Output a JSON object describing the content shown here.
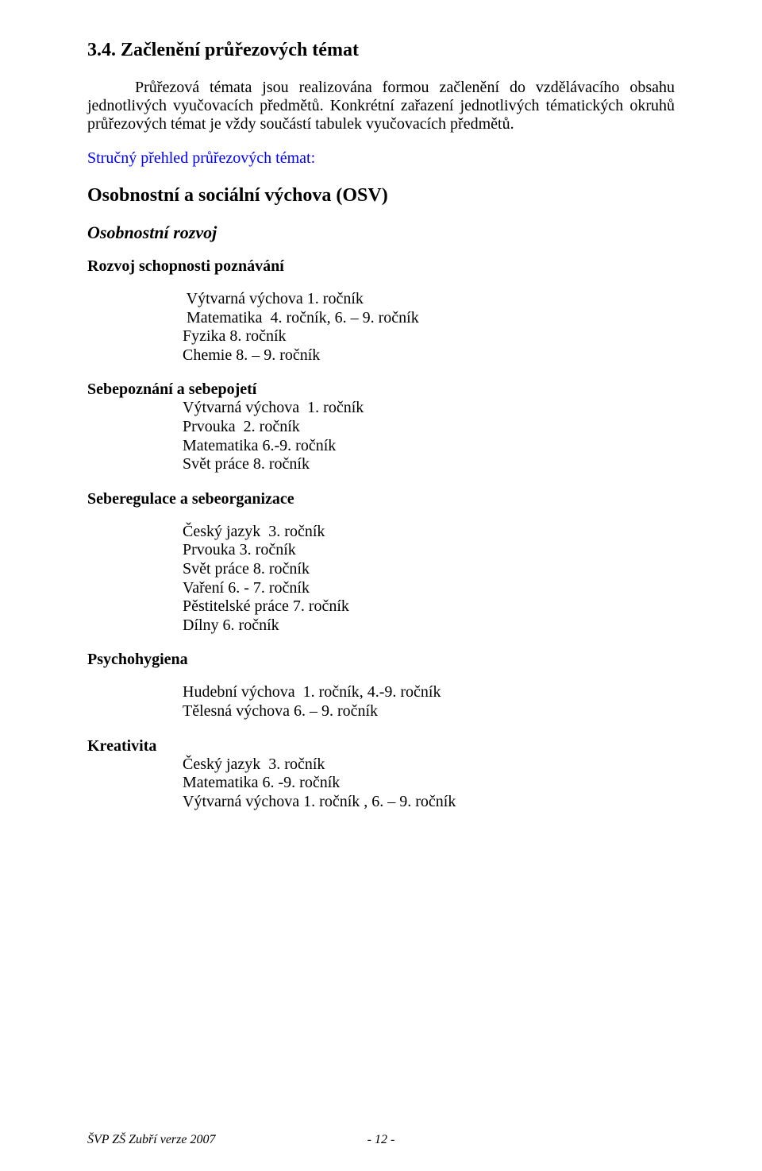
{
  "section_heading": "3.4. Začlenění průřezových témat",
  "intro": "Průřezová témata jsou realizována formou začlenění do vzdělávacího obsahu jednotlivých vyučovacích předmětů. Konkrétní zařazení jednotlivých tématických okruhů průřezových témat je vždy součástí tabulek vyučovacích předmětů.",
  "overview_label": "Stručný přehled průřezových témat:",
  "osv_title": "Osobnostní a sociální výchova (OSV)",
  "subheading": "Osobnostní rozvoj",
  "block1": {
    "title": "Rozvoj schopnosti poznávání",
    "lines": [
      " Výtvarná výchova 1. ročník",
      " Matematika  4. ročník, 6. – 9. ročník",
      "Fyzika 8. ročník",
      "Chemie 8. – 9. ročník"
    ]
  },
  "block2": {
    "title": "Sebepoznání a sebepojetí",
    "lines": [
      "Výtvarná výchova  1. ročník",
      "Prvouka  2. ročník",
      "Matematika 6.-9. ročník",
      "Svět práce 8. ročník"
    ]
  },
  "block3": {
    "title": "Seberegulace a sebeorganizace",
    "lines": [
      "Český jazyk  3. ročník",
      "Prvouka 3. ročník",
      "Svět práce 8. ročník",
      "Vaření 6. - 7. ročník",
      "Pěstitelské práce 7. ročník",
      "Dílny 6. ročník"
    ]
  },
  "block4": {
    "title": "Psychohygiena",
    "lines": [
      "Hudební výchova  1. ročník, 4.-9. ročník",
      "Tělesná výchova 6. – 9. ročník"
    ]
  },
  "block5": {
    "title": "Kreativita",
    "lines": [
      "Český jazyk  3. ročník",
      "Matematika 6. -9. ročník",
      "Výtvarná výchova 1. ročník , 6. – 9. ročník"
    ]
  },
  "footer_left": "ŠVP ZŠ Zubří verze 2007",
  "footer_page": "- 12 -"
}
